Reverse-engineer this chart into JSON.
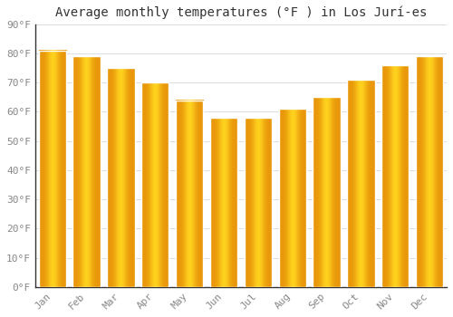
{
  "title": "Average monthly temperatures (°F ) in Los Jurí-es",
  "months": [
    "Jan",
    "Feb",
    "Mar",
    "Apr",
    "May",
    "Jun",
    "Jul",
    "Aug",
    "Sep",
    "Oct",
    "Nov",
    "Dec"
  ],
  "values": [
    81,
    79,
    75,
    70,
    64,
    58,
    58,
    61,
    65,
    71,
    76,
    79
  ],
  "bar_color_left": "#E8960A",
  "bar_color_center": "#FFCC00",
  "bar_color_right": "#E8960A",
  "background_color": "#FFFFFF",
  "grid_color": "#DDDDDD",
  "ylim": [
    0,
    90
  ],
  "yticks": [
    0,
    10,
    20,
    30,
    40,
    50,
    60,
    70,
    80,
    90
  ],
  "ytick_labels": [
    "0°F",
    "10°F",
    "20°F",
    "30°F",
    "40°F",
    "50°F",
    "60°F",
    "70°F",
    "80°F",
    "90°F"
  ],
  "title_fontsize": 10,
  "tick_fontsize": 8,
  "tick_color": "#888888",
  "spine_color": "#333333",
  "bar_width": 0.8
}
